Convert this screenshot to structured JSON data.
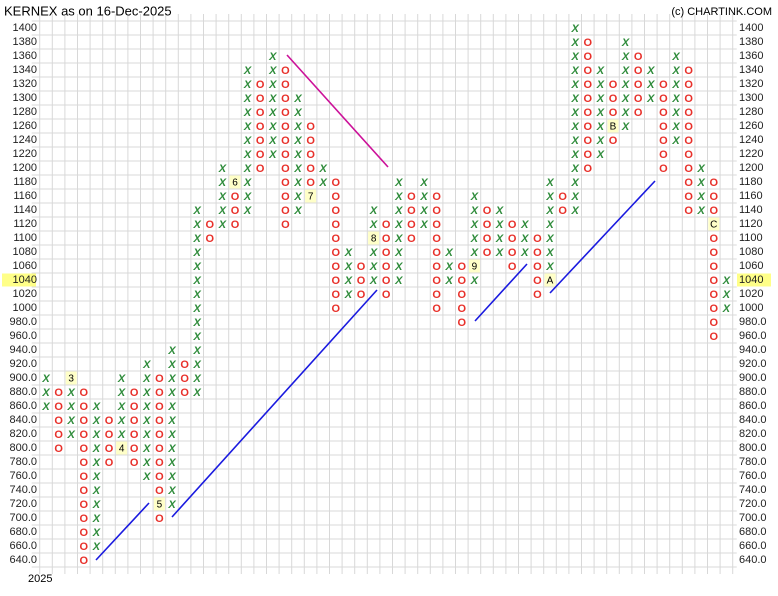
{
  "chart_data": {
    "type": "pnf",
    "title": "KERNEX as on 16-Dec-2025",
    "credit": "(c) CHARTINK.COM",
    "x_label": "2025",
    "box_size": 20,
    "ylim": [
      640,
      1400
    ],
    "yticks": [
      1400,
      1380,
      1360,
      1340,
      1320,
      1300,
      1280,
      1260,
      1240,
      1220,
      1200,
      1180,
      1160,
      1140,
      1120,
      1100,
      1080,
      1060,
      1040,
      1020,
      1000,
      {
        "value": 980,
        "label": "980.0"
      },
      {
        "value": 960,
        "label": "960.0"
      },
      {
        "value": 940,
        "label": "940.0"
      },
      {
        "value": 920,
        "label": "920.0"
      },
      {
        "value": 900,
        "label": "900.0"
      },
      {
        "value": 880,
        "label": "880.0"
      },
      {
        "value": 860,
        "label": "860.0"
      },
      {
        "value": 840,
        "label": "840.0"
      },
      {
        "value": 820,
        "label": "820.0"
      },
      {
        "value": 800,
        "label": "800.0"
      },
      {
        "value": 780,
        "label": "780.0"
      },
      {
        "value": 760,
        "label": "760.0"
      },
      {
        "value": 740,
        "label": "740.0"
      },
      {
        "value": 720,
        "label": "720.0"
      },
      {
        "value": 700,
        "label": "700.0"
      },
      {
        "value": 680,
        "label": "680.0"
      },
      {
        "value": 660,
        "label": "660.0"
      },
      {
        "value": 640,
        "label": "640.0"
      }
    ],
    "last_price": 1040,
    "colors": {
      "X": "#2e8b3a",
      "O": "#e8302a"
    },
    "columns": [
      {
        "type": "X",
        "low": 860,
        "high": 900
      },
      {
        "type": "O",
        "low": 800,
        "high": 880
      },
      {
        "type": "X",
        "low": 820,
        "high": 900
      },
      {
        "type": "O",
        "low": 640,
        "high": 880
      },
      {
        "type": "X",
        "low": 660,
        "high": 860
      },
      {
        "type": "O",
        "low": 780,
        "high": 840
      },
      {
        "type": "X",
        "low": 800,
        "high": 900
      },
      {
        "type": "O",
        "low": 780,
        "high": 880
      },
      {
        "type": "X",
        "low": 760,
        "high": 920
      },
      {
        "type": "O",
        "low": 700,
        "high": 900
      },
      {
        "type": "X",
        "low": 720,
        "high": 940
      },
      {
        "type": "O",
        "low": 880,
        "high": 920
      },
      {
        "type": "X",
        "low": 880,
        "high": 1140
      },
      {
        "type": "O",
        "low": 1100,
        "high": 1120
      },
      {
        "type": "X",
        "low": 1120,
        "high": 1200
      },
      {
        "type": "O",
        "low": 1120,
        "high": 1180
      },
      {
        "type": "X",
        "low": 1140,
        "high": 1340
      },
      {
        "type": "O",
        "low": 1200,
        "high": 1320
      },
      {
        "type": "X",
        "low": 1220,
        "high": 1360
      },
      {
        "type": "O",
        "low": 1120,
        "high": 1340
      },
      {
        "type": "X",
        "low": 1140,
        "high": 1300
      },
      {
        "type": "O",
        "low": 1160,
        "high": 1260
      },
      {
        "type": "X",
        "low": 1180,
        "high": 1200
      },
      {
        "type": "O",
        "low": 1000,
        "high": 1180
      },
      {
        "type": "X",
        "low": 1020,
        "high": 1080
      },
      {
        "type": "O",
        "low": 1020,
        "high": 1060
      },
      {
        "type": "X",
        "low": 1040,
        "high": 1140
      },
      {
        "type": "O",
        "low": 1020,
        "high": 1120
      },
      {
        "type": "X",
        "low": 1040,
        "high": 1180
      },
      {
        "type": "O",
        "low": 1100,
        "high": 1160
      },
      {
        "type": "X",
        "low": 1120,
        "high": 1180
      },
      {
        "type": "O",
        "low": 1000,
        "high": 1160
      },
      {
        "type": "X",
        "low": 1040,
        "high": 1080
      },
      {
        "type": "O",
        "low": 980,
        "high": 1060
      },
      {
        "type": "X",
        "low": 1040,
        "high": 1160
      },
      {
        "type": "O",
        "low": 1080,
        "high": 1140
      },
      {
        "type": "X",
        "low": 1080,
        "high": 1140
      },
      {
        "type": "O",
        "low": 1060,
        "high": 1120
      },
      {
        "type": "X",
        "low": 1080,
        "high": 1120
      },
      {
        "type": "O",
        "low": 1020,
        "high": 1100
      },
      {
        "type": "X",
        "low": 1040,
        "high": 1180
      },
      {
        "type": "O",
        "low": 1140,
        "high": 1160
      },
      {
        "type": "X",
        "low": 1140,
        "high": 1400
      },
      {
        "type": "O",
        "low": 1200,
        "high": 1380
      },
      {
        "type": "X",
        "low": 1220,
        "high": 1340
      },
      {
        "type": "O",
        "low": 1240,
        "high": 1320
      },
      {
        "type": "X",
        "low": 1260,
        "high": 1380
      },
      {
        "type": "O",
        "low": 1280,
        "high": 1360
      },
      {
        "type": "X",
        "low": 1300,
        "high": 1340
      },
      {
        "type": "O",
        "low": 1200,
        "high": 1320
      },
      {
        "type": "X",
        "low": 1240,
        "high": 1360
      },
      {
        "type": "O",
        "low": 1140,
        "high": 1340
      },
      {
        "type": "X",
        "low": 1140,
        "high": 1200
      },
      {
        "type": "O",
        "low": 960,
        "high": 1180
      },
      {
        "type": "X",
        "low": 1000,
        "high": 1040
      }
    ],
    "markers": [
      {
        "label": "3",
        "column": 2,
        "value": 900
      },
      {
        "label": "4",
        "column": 6,
        "value": 800
      },
      {
        "label": "5",
        "column": 9,
        "value": 720
      },
      {
        "label": "6",
        "column": 15,
        "value": 1180
      },
      {
        "label": "7",
        "column": 21,
        "value": 1160
      },
      {
        "label": "8",
        "column": 26,
        "value": 1100
      },
      {
        "label": "9",
        "column": 34,
        "value": 1060
      },
      {
        "label": "A",
        "column": 40,
        "value": 1040
      },
      {
        "label": "B",
        "column": 45,
        "value": 1260
      },
      {
        "label": "C",
        "column": 53,
        "value": 1120
      }
    ]
  }
}
